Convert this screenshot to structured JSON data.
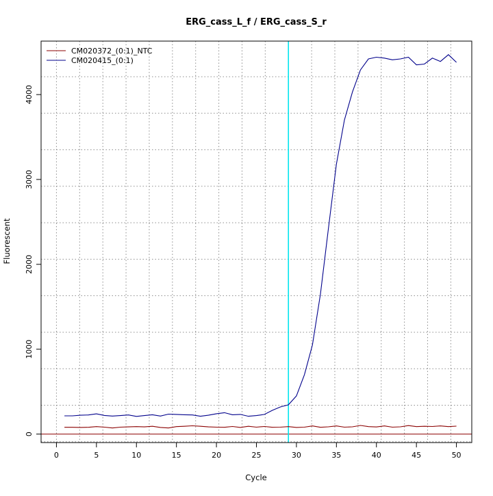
{
  "chart_data": {
    "type": "line",
    "title": "ERG_cass_L_f / ERG_cass_S_r",
    "xlabel": "Cycle",
    "ylabel": "Fluorescent",
    "xlim": [
      -1.92,
      51.92
    ],
    "ylim": [
      -100,
      4630
    ],
    "x_ticks": [
      0,
      5,
      10,
      15,
      20,
      25,
      30,
      35,
      40,
      45,
      50
    ],
    "x_tick_labels": [
      "0",
      "5",
      "10",
      "15",
      "20",
      "25",
      "30",
      "35",
      "40",
      "45",
      "50"
    ],
    "y_ticks": [
      0,
      1000,
      2000,
      3000,
      4000
    ],
    "y_tick_labels": [
      "0",
      "1000",
      "2000",
      "3000",
      "4000"
    ],
    "grid": "dotted",
    "grid_x": [
      0,
      2.9,
      5.8,
      8.7,
      11.6,
      14.5,
      17.4,
      20.3,
      23.2,
      26.1,
      29,
      31.9,
      34.8,
      37.7,
      40.6,
      43.5,
      46.4,
      49.3
    ],
    "grid_y": [
      -90,
      340,
      770,
      1200,
      1630,
      2060,
      2490,
      2920,
      3350,
      3780,
      4210
    ],
    "threshold_x": 29,
    "threshold_color": "#00e5ee",
    "baseline_y": 0,
    "baseline_color": "#8b0000",
    "legend_position": "top-left",
    "x": [
      1,
      2,
      3,
      4,
      5,
      6,
      7,
      8,
      9,
      10,
      11,
      12,
      13,
      14,
      15,
      16,
      17,
      18,
      19,
      20,
      21,
      22,
      23,
      24,
      25,
      26,
      27,
      28,
      29,
      30,
      31,
      32,
      33,
      34,
      35,
      36,
      37,
      38,
      39,
      40,
      41,
      42,
      43,
      44,
      45,
      46,
      47,
      48,
      49,
      50
    ],
    "series": [
      {
        "name": "CM020372_(0:1)_NTC",
        "color": "#8b0000",
        "values": [
          80,
          80,
          78,
          80,
          88,
          82,
          72,
          82,
          85,
          88,
          85,
          92,
          78,
          72,
          88,
          92,
          98,
          92,
          85,
          82,
          80,
          90,
          78,
          92,
          82,
          90,
          80,
          82,
          88,
          78,
          82,
          96,
          80,
          86,
          96,
          82,
          86,
          102,
          88,
          84,
          96,
          82,
          86,
          100,
          88,
          92,
          90,
          96,
          88,
          94
        ]
      },
      {
        "name": "CM020415_(0:1)",
        "color": "#00008b",
        "values": [
          215,
          215,
          222,
          225,
          238,
          220,
          212,
          218,
          225,
          208,
          218,
          228,
          212,
          235,
          232,
          228,
          225,
          210,
          222,
          240,
          252,
          228,
          232,
          210,
          218,
          232,
          280,
          320,
          345,
          450,
          700,
          1050,
          1650,
          2420,
          3180,
          3700,
          4030,
          4290,
          4420,
          4440,
          4430,
          4410,
          4420,
          4440,
          4350,
          4360,
          4430,
          4390,
          4470,
          4380
        ]
      }
    ]
  }
}
